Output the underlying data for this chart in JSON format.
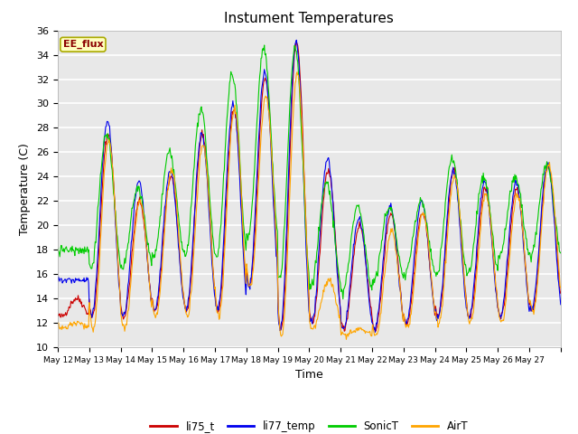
{
  "title": "Instument Temperatures",
  "xlabel": "Time",
  "ylabel": "Temperature (C)",
  "ylim": [
    10,
    36
  ],
  "annotation_text": "EE_flux",
  "annotation_color": "#8B0000",
  "annotation_bg": "#FFFFC0",
  "fig_bg_color": "#FFFFFF",
  "plot_bg_color": "#E8E8E8",
  "grid_color": "#FFFFFF",
  "series_colors": {
    "li75_t": "#CC0000",
    "li77_temp": "#0000EE",
    "SonicT": "#00CC00",
    "AirT": "#FFA500"
  },
  "x_tick_labels": [
    "May 12",
    "May 13",
    "May 14",
    "May 15",
    "May 16",
    "May 17",
    "May 18",
    "May 19",
    "May 20",
    "May 21",
    "May 22",
    "May 23",
    "May 24",
    "May 25",
    "May 26",
    "May 27"
  ],
  "num_days": 16,
  "points_per_day": 48,
  "nightlows_red": [
    12.5,
    12.5,
    12.5,
    13.0,
    13.0,
    13.0,
    15.0,
    11.5,
    12.0,
    11.5,
    11.5,
    12.0,
    12.5,
    12.5,
    12.5,
    13.0
  ],
  "nightlows_blue": [
    15.5,
    12.5,
    12.5,
    13.0,
    13.0,
    13.0,
    15.0,
    11.5,
    12.0,
    11.5,
    11.5,
    12.0,
    12.5,
    12.5,
    12.5,
    13.0
  ],
  "nightlows_green": [
    18.0,
    16.5,
    16.5,
    17.5,
    17.5,
    17.5,
    19.0,
    15.5,
    15.0,
    14.5,
    15.5,
    16.0,
    16.0,
    16.0,
    17.5,
    17.5
  ],
  "nightlows_orange": [
    11.5,
    11.5,
    11.5,
    12.5,
    12.5,
    12.5,
    15.0,
    11.0,
    11.5,
    11.0,
    11.0,
    11.5,
    12.0,
    12.0,
    12.0,
    13.0
  ],
  "day_highs_red": [
    14.0,
    27.5,
    22.0,
    24.0,
    27.5,
    29.5,
    32.0,
    35.0,
    24.5,
    20.0,
    21.0,
    21.0,
    24.5,
    23.0,
    23.0,
    25.0
  ],
  "day_highs_blue": [
    15.5,
    28.5,
    23.5,
    24.5,
    27.5,
    30.0,
    32.5,
    35.0,
    25.5,
    20.5,
    21.5,
    22.0,
    24.5,
    23.5,
    23.5,
    25.0
  ],
  "day_highs_green": [
    18.0,
    27.5,
    23.0,
    26.0,
    29.5,
    32.5,
    34.5,
    34.5,
    23.5,
    21.5,
    21.5,
    22.0,
    25.5,
    24.0,
    24.0,
    25.0
  ],
  "day_highs_orange": [
    12.0,
    27.0,
    22.0,
    24.5,
    26.5,
    29.5,
    30.5,
    32.5,
    15.5,
    11.5,
    19.5,
    21.0,
    24.0,
    22.5,
    22.5,
    25.0
  ]
}
